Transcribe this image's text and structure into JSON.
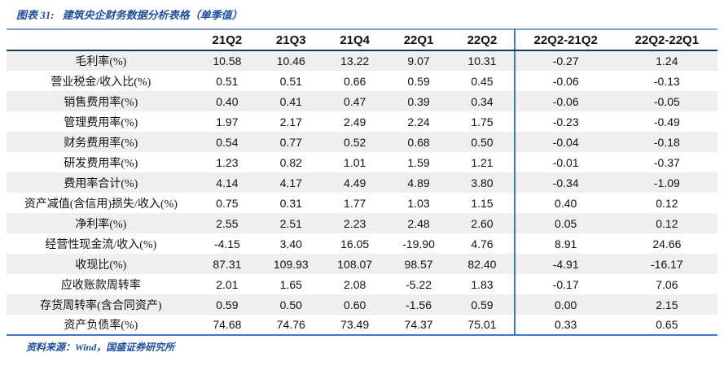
{
  "title": {
    "prefix": "图表 31:",
    "text": "建筑央企财务数据分析表格（单季值）"
  },
  "table": {
    "columns": [
      "21Q2",
      "21Q3",
      "21Q4",
      "22Q1",
      "22Q2",
      "22Q2-21Q2",
      "22Q2-22Q1"
    ],
    "rows": [
      {
        "label": "毛利率(%)",
        "values": [
          "10.58",
          "10.46",
          "13.22",
          "9.07",
          "10.31",
          "-0.27",
          "1.24"
        ]
      },
      {
        "label": "营业税金/收入比(%)",
        "values": [
          "0.51",
          "0.51",
          "0.66",
          "0.59",
          "0.45",
          "-0.06",
          "-0.13"
        ]
      },
      {
        "label": "销售费用率(%)",
        "values": [
          "0.40",
          "0.41",
          "0.47",
          "0.39",
          "0.34",
          "-0.06",
          "-0.05"
        ]
      },
      {
        "label": "管理费用率(%)",
        "values": [
          "1.97",
          "2.17",
          "2.49",
          "2.24",
          "1.75",
          "-0.23",
          "-0.49"
        ]
      },
      {
        "label": "财务费用率(%)",
        "values": [
          "0.54",
          "0.77",
          "0.52",
          "0.68",
          "0.50",
          "-0.04",
          "-0.18"
        ]
      },
      {
        "label": "研发费用率(%)",
        "values": [
          "1.23",
          "0.82",
          "1.01",
          "1.59",
          "1.21",
          "-0.01",
          "-0.37"
        ]
      },
      {
        "label": "费用率合计(%)",
        "values": [
          "4.14",
          "4.17",
          "4.49",
          "4.89",
          "3.80",
          "-0.34",
          "-1.09"
        ]
      },
      {
        "label": "资产减值(含信用)损失/收入(%)",
        "values": [
          "0.75",
          "0.31",
          "1.77",
          "1.03",
          "1.15",
          "0.40",
          "0.12"
        ]
      },
      {
        "label": "净利率(%)",
        "values": [
          "2.55",
          "2.51",
          "2.23",
          "2.48",
          "2.60",
          "0.05",
          "0.12"
        ]
      },
      {
        "label": "经营性现金流/收入(%)",
        "values": [
          "-4.15",
          "3.40",
          "16.05",
          "-19.90",
          "4.76",
          "8.91",
          "24.66"
        ]
      },
      {
        "label": "收现比(%)",
        "values": [
          "87.31",
          "109.93",
          "108.07",
          "98.57",
          "82.40",
          "-4.91",
          "-16.17"
        ]
      },
      {
        "label": "应收账款周转率",
        "values": [
          "2.01",
          "1.65",
          "2.08",
          "-5.22",
          "1.83",
          "-0.17",
          "7.06"
        ]
      },
      {
        "label": "存货周转率(含合同资产)",
        "values": [
          "0.59",
          "0.50",
          "0.60",
          "-1.56",
          "0.59",
          "0.00",
          "2.15"
        ]
      },
      {
        "label": "资产负债率(%)",
        "values": [
          "74.68",
          "74.76",
          "73.49",
          "74.37",
          "75.01",
          "0.33",
          "0.65"
        ]
      }
    ]
  },
  "footer": {
    "source_text": "资料来源：Wind，国盛证券研究所"
  },
  "colors": {
    "accent_blue": "#4472C4",
    "top_line": "#7F9DC9",
    "header_line": "#17375E",
    "stripe": "#EFEFEF",
    "title_blue": "#1F4E9C",
    "text": "#111111"
  }
}
